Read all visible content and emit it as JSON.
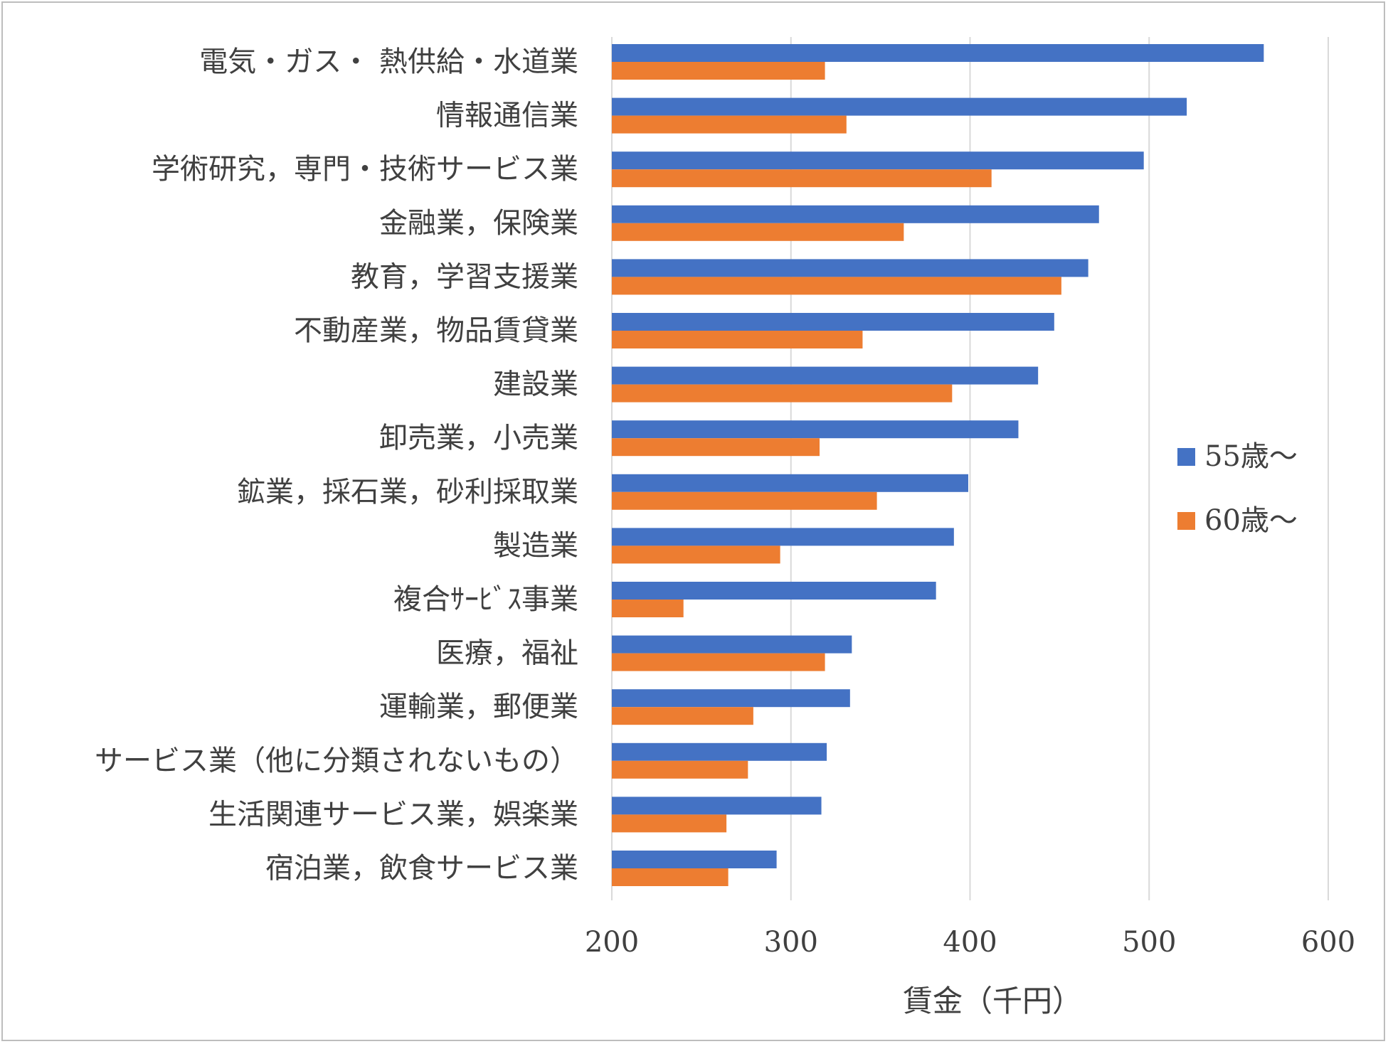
{
  "chart_data": {
    "type": "bar",
    "orientation": "horizontal",
    "categories": [
      "電気・ガス・ 熱供給・水道業",
      "情報通信業",
      "学術研究，専門・技術サービス業",
      "金融業，保険業",
      "教育，学習支援業",
      "不動産業，物品賃貸業",
      "建設業",
      "卸売業，小売業",
      "鉱業，採石業，砂利採取業",
      "製造業",
      "複合ｻｰﾋﾞｽ事業",
      "医療，福祉",
      "運輸業，郵便業",
      "サービス業（他に分類されないもの）",
      "生活関連サービス業，娯楽業",
      "宿泊業，飲食サービス業"
    ],
    "series": [
      {
        "name": "55歳～",
        "color": "#4472C4",
        "values": [
          564,
          521,
          497,
          472,
          466,
          447,
          438,
          427,
          399,
          391,
          381,
          334,
          333,
          320,
          317,
          292
        ]
      },
      {
        "name": "60歳～",
        "color": "#ED7D31",
        "values": [
          319,
          331,
          412,
          363,
          451,
          340,
          390,
          316,
          348,
          294,
          240,
          319,
          279,
          276,
          264,
          265
        ]
      }
    ],
    "xlabel": "賃金（千円）",
    "ylabel": "",
    "xlim": [
      200,
      600
    ],
    "xticks": [
      "200",
      "300",
      "400",
      "500",
      "600"
    ],
    "grid": true,
    "legend_position": "right"
  }
}
